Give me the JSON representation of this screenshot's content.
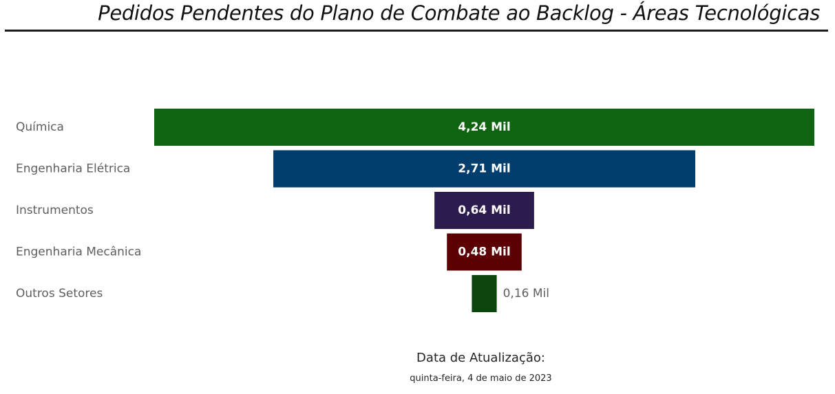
{
  "header": {
    "title": "Pedidos Pendentes do Plano de Combate ao Backlog - Áreas Tecnológicas"
  },
  "chart_data": {
    "type": "funnel",
    "title": "",
    "categories": [
      "Química",
      "Engenharia Elétrica",
      "Instrumentos",
      "Engenharia Mecânica",
      "Outros Setores"
    ],
    "values": [
      4.24,
      2.71,
      0.64,
      0.48,
      0.16
    ],
    "value_labels": [
      "4,24 Mil",
      "2,71 Mil",
      "0,64 Mil",
      "0,48 Mil",
      "0,16 Mil"
    ],
    "unit": "Mil",
    "colors": [
      "#0e6410",
      "#013e6d",
      "#2c1b4e",
      "#5c0003",
      "#0c440e"
    ]
  },
  "footer": {
    "update_label": "Data de Atualização:",
    "update_date": "quinta-feira, 4 de maio de 2023"
  }
}
